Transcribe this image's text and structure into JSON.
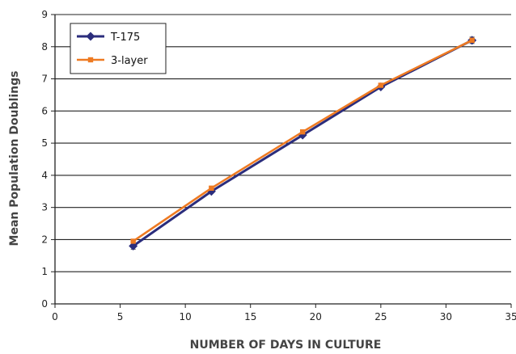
{
  "chart_data": {
    "type": "line",
    "title": "",
    "xlabel": "NUMBER OF DAYS IN CULTURE",
    "ylabel": "Mean Population Doublings",
    "xlim": [
      0,
      35
    ],
    "ylim": [
      0,
      9
    ],
    "xticks": [
      0,
      5,
      10,
      15,
      20,
      25,
      30,
      35
    ],
    "yticks": [
      0,
      1,
      2,
      3,
      4,
      5,
      6,
      7,
      8,
      9
    ],
    "grid": "horizontal",
    "legend_position": "top-left",
    "series": [
      {
        "name": "T-175",
        "color": "#2b2d7c",
        "marker": "diamond",
        "x": [
          6,
          12,
          19,
          25,
          32
        ],
        "y": [
          1.8,
          3.5,
          5.25,
          6.75,
          8.2
        ],
        "error": [
          0.1,
          0.05,
          0.05,
          0.05,
          0.1
        ]
      },
      {
        "name": "3-layer",
        "color": "#ee7a22",
        "marker": "square",
        "x": [
          6,
          12,
          19,
          25,
          32
        ],
        "y": [
          1.95,
          3.6,
          5.35,
          6.8,
          8.2
        ],
        "error": [
          0.05,
          0.05,
          0.05,
          0.05,
          0.05
        ]
      }
    ]
  }
}
